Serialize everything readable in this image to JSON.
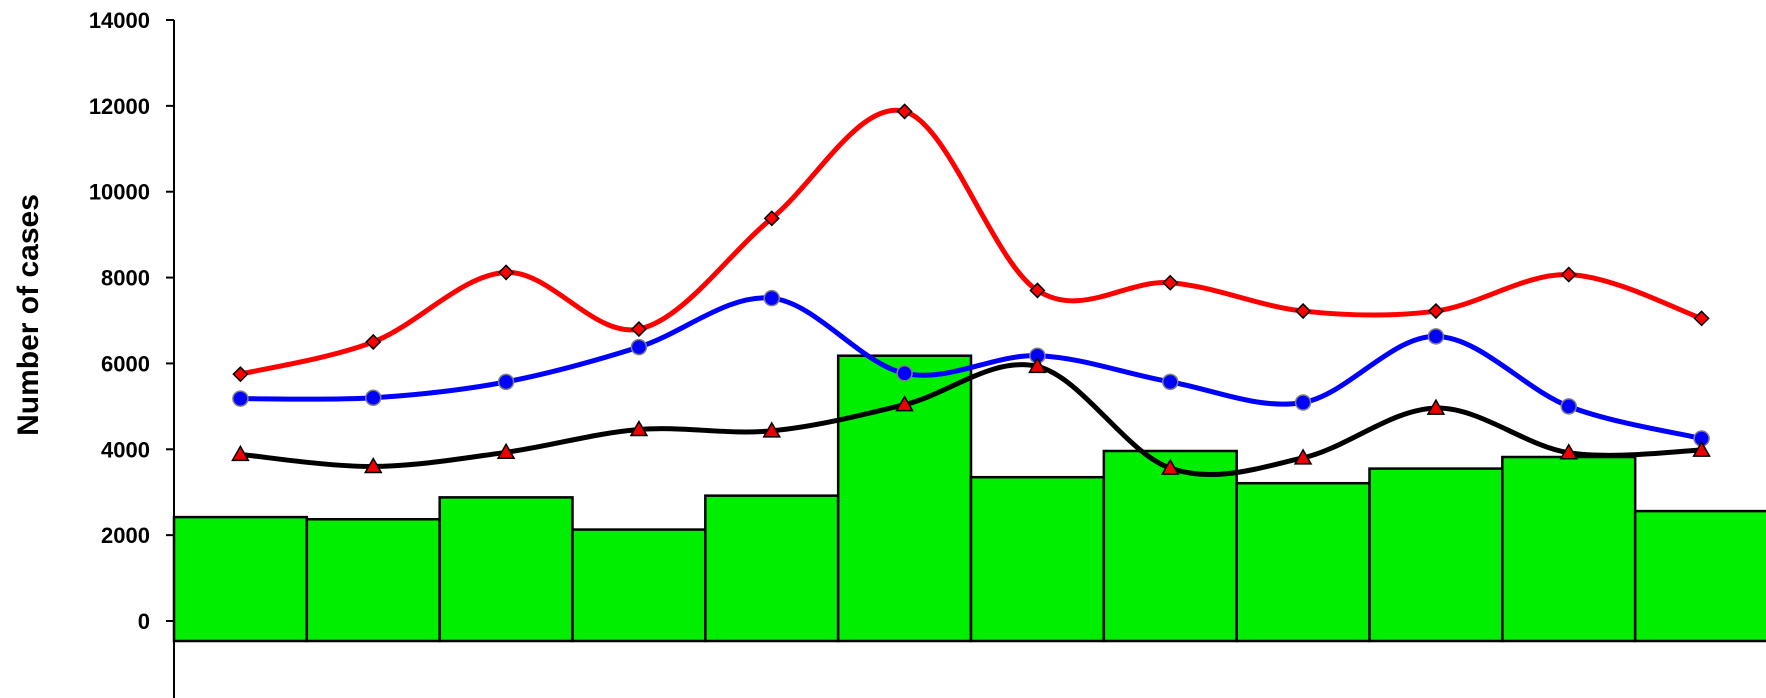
{
  "chart_data": {
    "type": "bar",
    "title": "",
    "xlabel": "",
    "ylabel": "Number of cases",
    "ylim": [
      0,
      14000
    ],
    "yticks": [
      0,
      2000,
      4000,
      6000,
      8000,
      10000,
      12000,
      14000
    ],
    "grid": false,
    "legend": "none",
    "bars": {
      "color": "#00ee00",
      "values": [
        2420,
        2370,
        2880,
        2130,
        2920,
        6180,
        3350,
        3960,
        3210,
        3550,
        3820,
        2560
      ]
    },
    "series": [
      {
        "color": "#ff0000",
        "marker": "diamond",
        "values": [
          5750,
          6500,
          8120,
          6800,
          9380,
          11870,
          7700,
          7880,
          7220,
          7220,
          8070,
          7050
        ]
      },
      {
        "color": "#0000ff",
        "marker": "circle",
        "values": [
          5180,
          5200,
          5570,
          6380,
          7520,
          5770,
          6180,
          5570,
          5090,
          6630,
          5000,
          4250
        ]
      },
      {
        "color": "#000000",
        "marker": "triangle",
        "values": [
          3880,
          3600,
          3930,
          4460,
          4430,
          5040,
          5930,
          3560,
          3800,
          4960,
          3920,
          3980
        ]
      }
    ]
  }
}
